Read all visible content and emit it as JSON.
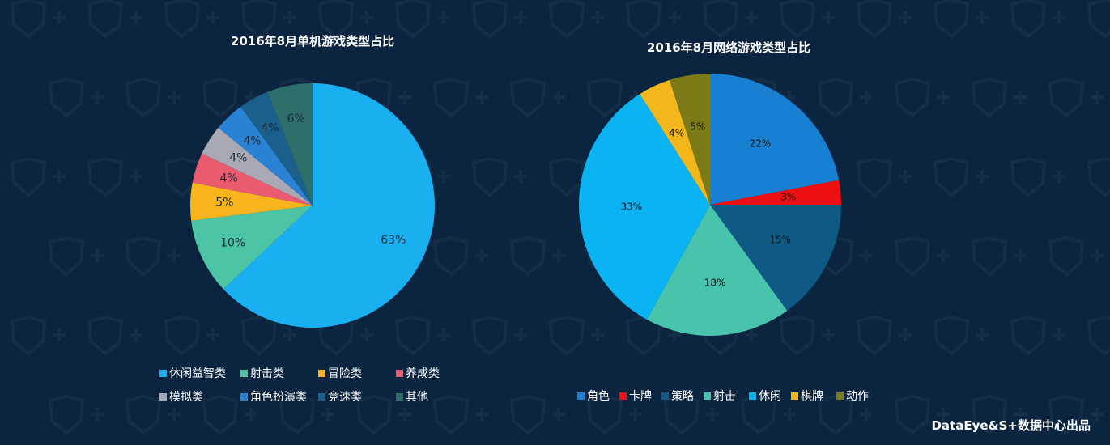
{
  "footer": "DataEye&S+数据中心出品",
  "chart_data": [
    {
      "type": "pie",
      "title": "2016年8月单机游戏类型占比",
      "slices": [
        {
          "name": "休闲益智类",
          "value": 63,
          "label": "63%",
          "color": "#1aaff0"
        },
        {
          "name": "射击类",
          "value": 10,
          "label": "10%",
          "color": "#4cc4a6"
        },
        {
          "name": "冒险类",
          "value": 5,
          "label": "5%",
          "color": "#f8b41c"
        },
        {
          "name": "养成类",
          "value": 4,
          "label": "4%",
          "color": "#ea5b6f"
        },
        {
          "name": "模拟类",
          "value": 4,
          "label": "4%",
          "color": "#a9a9b5"
        },
        {
          "name": "角色扮演类",
          "value": 4,
          "label": "4%",
          "color": "#2a82d4"
        },
        {
          "name": "竞速类",
          "value": 4,
          "label": "4%",
          "color": "#1b5f8c"
        },
        {
          "name": "其他",
          "value": 6,
          "label": "6%",
          "color": "#2d6f68"
        }
      ]
    },
    {
      "type": "pie",
      "title": "2016年8月网络游戏类型占比",
      "slices": [
        {
          "name": "角色",
          "value": 22,
          "label": "22%",
          "color": "#1780d2"
        },
        {
          "name": "卡牌",
          "value": 3,
          "label": "3%",
          "color": "#ee1010"
        },
        {
          "name": "策略",
          "value": 15,
          "label": "15%",
          "color": "#0f5a84"
        },
        {
          "name": "射击",
          "value": 18,
          "label": "18%",
          "color": "#48c4ac"
        },
        {
          "name": "休闲",
          "value": 33,
          "label": "33%",
          "color": "#0ab4f2"
        },
        {
          "name": "棋牌",
          "value": 4,
          "label": "4%",
          "color": "#f4b71b"
        },
        {
          "name": "动作",
          "value": 5,
          "label": "5%",
          "color": "#7b7a16"
        }
      ]
    }
  ]
}
